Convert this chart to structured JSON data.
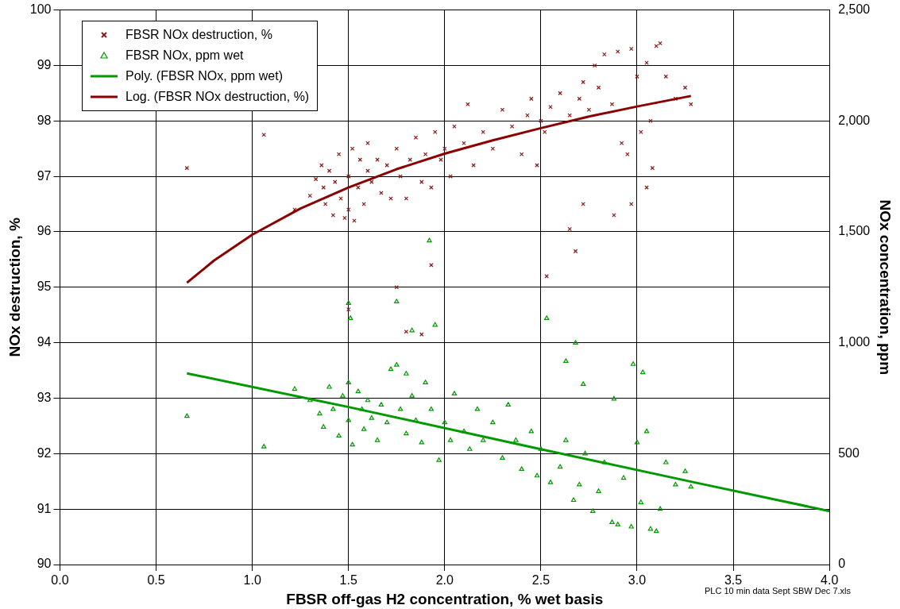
{
  "chart_data": {
    "type": "scatter",
    "xlabel": "FBSR off-gas H2 concentration, % wet basis",
    "ylabel": "NOx destruction, %",
    "y2label": "NOx concentration, ppm",
    "xlim": [
      0,
      4
    ],
    "xticks": [
      {
        "value": 0,
        "label": "0.0"
      },
      {
        "value": 0.5,
        "label": "0.5"
      },
      {
        "value": 1,
        "label": "1.0"
      },
      {
        "value": 1.5,
        "label": "1.5"
      },
      {
        "value": 2,
        "label": "2.0"
      },
      {
        "value": 2.5,
        "label": "2.5"
      },
      {
        "value": 3,
        "label": "3.0"
      },
      {
        "value": 3.5,
        "label": "3.5"
      },
      {
        "value": 4,
        "label": "4.0"
      }
    ],
    "ylim": [
      90,
      100
    ],
    "yticks": [
      90,
      91,
      92,
      93,
      94,
      95,
      96,
      97,
      98,
      99,
      100
    ],
    "y2lim": [
      0,
      2500
    ],
    "y2ticks": [
      0,
      500,
      {
        "value": 1000,
        "label": "1,000"
      },
      {
        "value": 1500,
        "label": "1,500"
      },
      {
        "value": 2000,
        "label": "2,000"
      },
      {
        "value": 2500,
        "label": "2,500"
      }
    ],
    "grid": true,
    "legend": "top left",
    "annotations": [
      "PLC 10 min data Sept SBW Dec 7.xls"
    ],
    "series": [
      {
        "name": "FBSR NOx destruction, %",
        "type": "scatter",
        "marker": "cross",
        "color": "#8b1a1a",
        "x": [
          0.66,
          1.06,
          1.22,
          1.3,
          1.33,
          1.36,
          1.37,
          1.38,
          1.4,
          1.42,
          1.43,
          1.45,
          1.46,
          1.48,
          1.5,
          1.5,
          1.52,
          1.53,
          1.55,
          1.56,
          1.58,
          1.6,
          1.6,
          1.62,
          1.65,
          1.67,
          1.7,
          1.72,
          1.75,
          1.77,
          1.8,
          1.82,
          1.85,
          1.88,
          1.9,
          1.93,
          1.95,
          1.98,
          2.0,
          2.03,
          2.05,
          2.1,
          2.12,
          2.15,
          2.2,
          2.25,
          2.3,
          2.35,
          2.4,
          2.43,
          2.45,
          2.5,
          2.52,
          2.55,
          2.6,
          2.65,
          2.7,
          2.72,
          2.75,
          2.78,
          2.8,
          2.83,
          2.87,
          2.9,
          2.92,
          2.95,
          2.97,
          3.0,
          3.02,
          3.05,
          3.07,
          3.1,
          3.12,
          3.15,
          3.2,
          3.25,
          3.28,
          1.5,
          1.75,
          1.8,
          1.88,
          1.93,
          2.48,
          2.53,
          2.65,
          2.68,
          2.72,
          2.88,
          2.97,
          3.05,
          3.08
        ],
        "values": [
          97.15,
          97.75,
          96.4,
          96.65,
          96.95,
          97.2,
          96.8,
          96.5,
          97.1,
          96.3,
          96.9,
          97.4,
          96.6,
          96.25,
          97.0,
          96.4,
          97.5,
          96.2,
          96.8,
          97.3,
          96.5,
          97.1,
          97.6,
          96.9,
          97.3,
          96.7,
          97.2,
          96.6,
          97.5,
          97.0,
          96.6,
          97.3,
          97.7,
          96.9,
          97.4,
          96.8,
          97.8,
          97.3,
          97.5,
          97.0,
          97.9,
          97.6,
          98.3,
          97.2,
          97.8,
          97.5,
          98.2,
          97.9,
          97.4,
          98.1,
          98.4,
          98.0,
          97.8,
          98.25,
          98.5,
          98.1,
          98.4,
          98.7,
          98.2,
          99.0,
          98.6,
          99.2,
          98.3,
          99.25,
          97.6,
          97.4,
          99.3,
          98.8,
          97.8,
          99.05,
          98.0,
          99.35,
          99.4,
          98.8,
          98.4,
          98.6,
          98.3,
          94.6,
          95.0,
          94.2,
          94.15,
          95.4,
          97.2,
          95.2,
          96.05,
          95.65,
          96.5,
          96.3,
          96.5,
          96.8,
          97.15
        ]
      },
      {
        "name": "FBSR NOx, ppm wet",
        "type": "scatter",
        "marker": "triangle",
        "axis": "y2",
        "color": "#009900",
        "x": [
          0.66,
          1.06,
          1.22,
          1.3,
          1.35,
          1.37,
          1.4,
          1.42,
          1.45,
          1.47,
          1.5,
          1.5,
          1.52,
          1.55,
          1.57,
          1.58,
          1.6,
          1.62,
          1.65,
          1.67,
          1.7,
          1.72,
          1.75,
          1.77,
          1.8,
          1.8,
          1.83,
          1.85,
          1.88,
          1.9,
          1.93,
          1.97,
          2.0,
          2.03,
          2.05,
          2.1,
          2.13,
          2.17,
          2.2,
          2.25,
          2.3,
          2.33,
          2.37,
          2.4,
          2.45,
          2.48,
          2.5,
          2.55,
          2.6,
          2.63,
          2.67,
          2.7,
          2.73,
          2.77,
          2.8,
          2.83,
          2.87,
          2.9,
          2.93,
          2.97,
          3.0,
          3.02,
          3.05,
          3.07,
          3.1,
          3.12,
          3.15,
          3.2,
          3.25,
          3.28,
          1.5,
          1.51,
          1.75,
          1.83,
          1.92,
          1.95,
          2.53,
          2.63,
          2.68,
          2.72,
          2.88,
          2.98,
          3.03
        ],
        "values": [
          669,
          531,
          791,
          740,
          680,
          620,
          800,
          700,
          580,
          760,
          820,
          650,
          540,
          780,
          700,
          610,
          740,
          660,
          560,
          720,
          640,
          880,
          900,
          700,
          860,
          590,
          760,
          650,
          550,
          820,
          700,
          470,
          640,
          560,
          770,
          600,
          520,
          700,
          560,
          640,
          480,
          720,
          560,
          430,
          600,
          400,
          520,
          370,
          440,
          560,
          290,
          360,
          500,
          240,
          330,
          460,
          190,
          180,
          390,
          170,
          550,
          280,
          600,
          160,
          150,
          250,
          460,
          360,
          420,
          350,
          1178,
          1110,
          1185,
          1055,
          1460,
          1080,
          1110,
          917,
          999,
          813,
          747,
          903,
          866
        ]
      },
      {
        "name": "Poly. (FBSR NOx, ppm wet)",
        "type": "line",
        "marker": "none",
        "axis": "y2",
        "color": "#009900",
        "x": [
          0.66,
          1.5,
          2.5,
          3.3,
          4.0
        ],
        "values": [
          862,
          710,
          520,
          370,
          241
        ]
      },
      {
        "name": "Log. (FBSR NOx destruction, %)",
        "type": "line",
        "marker": "none",
        "color": "#8b0000",
        "x": [
          0.66,
          0.8,
          1.0,
          1.25,
          1.5,
          1.75,
          2.0,
          2.25,
          2.5,
          2.75,
          3.0,
          3.28
        ],
        "values": [
          95.08,
          95.48,
          95.95,
          96.42,
          96.8,
          97.13,
          97.41,
          97.65,
          97.87,
          98.08,
          98.26,
          98.45
        ]
      }
    ]
  }
}
